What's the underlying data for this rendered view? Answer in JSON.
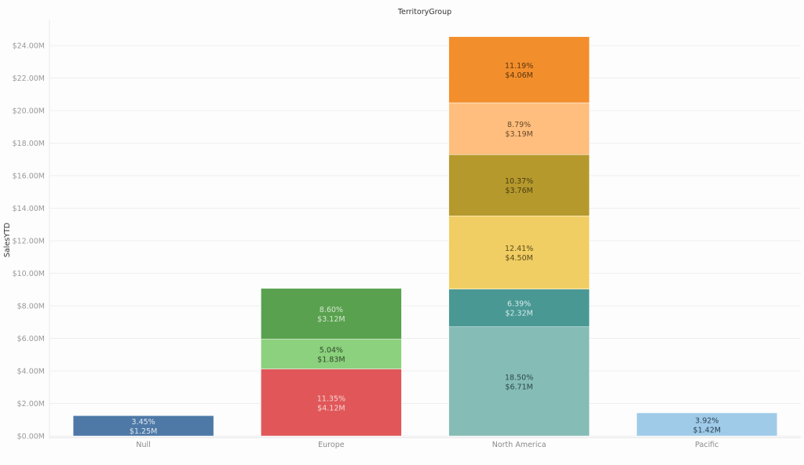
{
  "chart_data": {
    "type": "bar",
    "stacked": true,
    "title": "TerritoryGroup",
    "xlabel": "",
    "ylabel": "SalesYTD",
    "ylim": [
      0,
      25
    ],
    "grid": true,
    "y_ticks": [
      "$0.00M",
      "$2.00M",
      "$4.00M",
      "$6.00M",
      "$8.00M",
      "$10.00M",
      "$12.00M",
      "$14.00M",
      "$16.00M",
      "$18.00M",
      "$20.00M",
      "$22.00M",
      "$24.00M"
    ],
    "categories": [
      "Null",
      "Europe",
      "North America",
      "Pacific"
    ],
    "stacks": [
      {
        "category": "Null",
        "segments": [
          {
            "value": 1.25,
            "pct": "3.45%",
            "label": "$1.25M",
            "color": "#4e79a7",
            "text_color": "#dfe7f0"
          }
        ]
      },
      {
        "category": "Europe",
        "segments": [
          {
            "value": 4.12,
            "pct": "11.35%",
            "label": "$4.12M",
            "color": "#e15759",
            "text_color": "#f6d3d3"
          },
          {
            "value": 1.83,
            "pct": "5.04%",
            "label": "$1.83M",
            "color": "#8cd17d",
            "text_color": "#2e4a2a"
          },
          {
            "value": 3.12,
            "pct": "8.60%",
            "label": "$3.12M",
            "color": "#59a14f",
            "text_color": "#d3e8cf"
          }
        ]
      },
      {
        "category": "North America",
        "segments": [
          {
            "value": 6.71,
            "pct": "18.50%",
            "label": "$6.71M",
            "color": "#86bcb6",
            "text_color": "#2c4a47"
          },
          {
            "value": 2.32,
            "pct": "6.39%",
            "label": "$2.32M",
            "color": "#499894",
            "text_color": "#d6ebe9"
          },
          {
            "value": 4.5,
            "pct": "12.41%",
            "label": "$4.50M",
            "color": "#f1ce63",
            "text_color": "#5a4a1a"
          },
          {
            "value": 3.76,
            "pct": "10.37%",
            "label": "$3.76M",
            "color": "#b6992d",
            "text_color": "#4a3d10"
          },
          {
            "value": 3.19,
            "pct": "8.79%",
            "label": "$3.19M",
            "color": "#ffbe7d",
            "text_color": "#6a4a2a"
          },
          {
            "value": 4.06,
            "pct": "11.19%",
            "label": "$4.06M",
            "color": "#f28e2b",
            "text_color": "#5a3510"
          }
        ]
      },
      {
        "category": "Pacific",
        "segments": [
          {
            "value": 1.42,
            "pct": "3.92%",
            "label": "$1.42M",
            "color": "#a0cbe8",
            "text_color": "#2a3f55"
          }
        ]
      }
    ]
  }
}
